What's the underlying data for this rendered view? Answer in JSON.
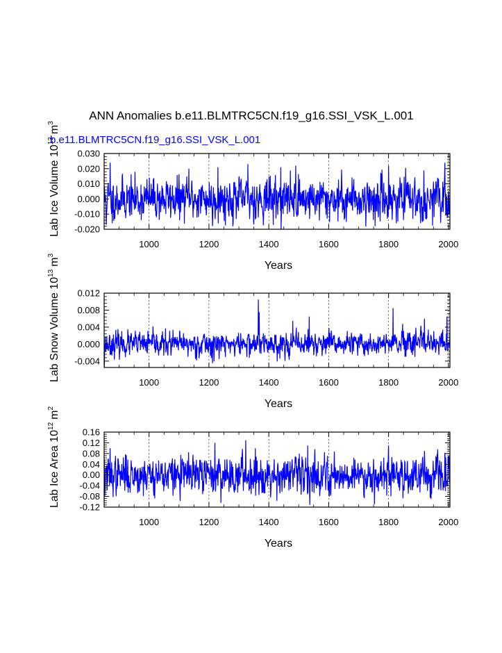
{
  "title": "ANN Anomalies b.e11.BLMTRC5CN.f19_g16.SSI_VSK_L.001",
  "case_label": "b.e11.BLMTRC5CN.f19_g16.SSI_VSK_L.001",
  "colors": {
    "series": "#0000ff",
    "axis": "#000000",
    "grid": "#000000",
    "case_label": "#0000ff"
  },
  "chart_data": [
    {
      "type": "line",
      "panel": "lab-ice-volume",
      "ylabel": "Lab Ice Volume 10^13 m^3",
      "ylabel_main": "Lab Ice Volume 10",
      "ylabel_exp": "13",
      "ylabel_unit": "m",
      "ylabel_unit_exp": "3",
      "xlabel": "Years",
      "xlim": [
        850,
        2005
      ],
      "ylim": [
        -0.02,
        0.03
      ],
      "xticks": [
        1000,
        1200,
        1400,
        1600,
        1800,
        2000
      ],
      "yticks": [
        -0.02,
        -0.01,
        0.0,
        0.01,
        0.02,
        0.03
      ],
      "ytick_labels": [
        "-0.020",
        "-0.010",
        "0.000",
        "0.010",
        "0.020",
        "0.030"
      ],
      "vgrid": [
        1000,
        1200,
        1400,
        1600,
        1800,
        2000
      ],
      "series": [
        {
          "name": "b.e11.BLMTRC5CN.f19_g16.SSI_VSK_L.001",
          "x_start": 850,
          "x_end": 2005,
          "mean": 0.0,
          "std": 0.0068,
          "seed": 11,
          "peaks": [
            [
              857,
              -0.017
            ],
            [
              870,
              0.024
            ],
            [
              877,
              -0.016
            ],
            [
              1133,
              0.02
            ],
            [
              1212,
              -0.018
            ],
            [
              1230,
              0.021
            ],
            [
              1330,
              0.023
            ],
            [
              1440,
              0.021
            ],
            [
              1490,
              0.022
            ],
            [
              1755,
              -0.018
            ],
            [
              1800,
              0.022
            ],
            [
              1924,
              -0.013
            ],
            [
              1952,
              -0.012
            ]
          ]
        }
      ]
    },
    {
      "type": "line",
      "panel": "lab-snow-volume",
      "ylabel": "Lab Snow Volume 10^13 m^3",
      "ylabel_main": "Lab Snow Volume 10",
      "ylabel_exp": "13",
      "ylabel_unit": "m",
      "ylabel_unit_exp": "3",
      "xlabel": "Years",
      "xlim": [
        850,
        2005
      ],
      "ylim": [
        -0.0055,
        0.012
      ],
      "xticks": [
        1000,
        1200,
        1400,
        1600,
        1800,
        2000
      ],
      "yticks": [
        -0.004,
        0.0,
        0.004,
        0.008,
        0.012
      ],
      "ytick_labels": [
        "-0.004",
        "0.000",
        "0.004",
        "0.008",
        "0.012"
      ],
      "vgrid": [
        1000,
        1200,
        1400,
        1600,
        1800,
        2000
      ],
      "series": [
        {
          "name": "b.e11.BLMTRC5CN.f19_g16.SSI_VSK_L.001",
          "x_start": 850,
          "x_end": 2005,
          "mean": 0.0,
          "std": 0.0014,
          "seed": 23,
          "peaks": [
            [
              850,
              -0.0055
            ],
            [
              851,
              -0.0045
            ],
            [
              1212,
              -0.0045
            ],
            [
              1365,
              0.0105
            ],
            [
              1368,
              0.0075
            ],
            [
              1480,
              0.0055
            ],
            [
              1535,
              0.0065
            ],
            [
              1815,
              0.0085
            ],
            [
              1920,
              0.006
            ],
            [
              1995,
              0.0065
            ]
          ]
        }
      ]
    },
    {
      "type": "line",
      "panel": "lab-ice-area",
      "ylabel": "Lab Ice Area 10^12 m^2",
      "ylabel_main": "Lab Ice Area 10",
      "ylabel_exp": "12",
      "ylabel_unit": "m",
      "ylabel_unit_exp": "2",
      "xlabel": "Years",
      "xlim": [
        850,
        2005
      ],
      "ylim": [
        -0.12,
        0.16
      ],
      "xticks": [
        1000,
        1200,
        1400,
        1600,
        1800,
        2000
      ],
      "yticks": [
        -0.12,
        -0.08,
        -0.04,
        0.0,
        0.04,
        0.08,
        0.12,
        0.16
      ],
      "ytick_labels": [
        "-0.12",
        "-0.08",
        "-0.04",
        "0.00",
        "0.04",
        "0.08",
        "0.12",
        "0.16"
      ],
      "vgrid": [
        1000,
        1200,
        1400,
        1600,
        1800,
        2000
      ],
      "series": [
        {
          "name": "b.e11.BLMTRC5CN.f19_g16.SSI_VSK_L.001",
          "x_start": 850,
          "x_end": 2005,
          "mean": 0.0,
          "std": 0.035,
          "seed": 37,
          "peaks": [
            [
              852,
              -0.08
            ],
            [
              870,
              0.1
            ],
            [
              1220,
              0.12
            ],
            [
              1323,
              0.13
            ],
            [
              1355,
              0.1
            ],
            [
              1530,
              0.11
            ],
            [
              1800,
              0.11
            ],
            [
              1920,
              0.09
            ],
            [
              1990,
              -0.06
            ]
          ]
        }
      ]
    }
  ]
}
